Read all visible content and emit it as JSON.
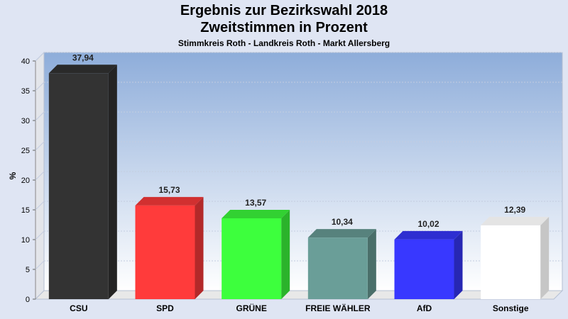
{
  "chart_data": {
    "type": "bar",
    "title": "Ergebnis zur Bezirkswahl 2018",
    "title_line2": "Zweitstimmen in Prozent",
    "subtitle": "Stimmkreis Roth - Landkreis Roth - Markt Allersberg",
    "ylabel": "%",
    "xlabel": "",
    "ylim": [
      0,
      40
    ],
    "yticks": [
      0,
      5,
      10,
      15,
      20,
      25,
      30,
      35,
      40
    ],
    "grid": true,
    "categories": [
      "CSU",
      "SPD",
      "GRÜNE",
      "FREIE WÄHLER",
      "AfD",
      "Sonstige"
    ],
    "values": [
      37.94,
      15.73,
      13.57,
      10.34,
      10.02,
      12.39
    ],
    "value_labels": [
      "37,94",
      "15,73",
      "13,57",
      "10,34",
      "10,02",
      "12,39"
    ],
    "colors": [
      "#333333",
      "#ff3b3b",
      "#3dff3d",
      "#6a9e98",
      "#3838ff",
      "#ffffff"
    ],
    "plot_background": [
      "#8eadda",
      "#ffffff"
    ]
  }
}
